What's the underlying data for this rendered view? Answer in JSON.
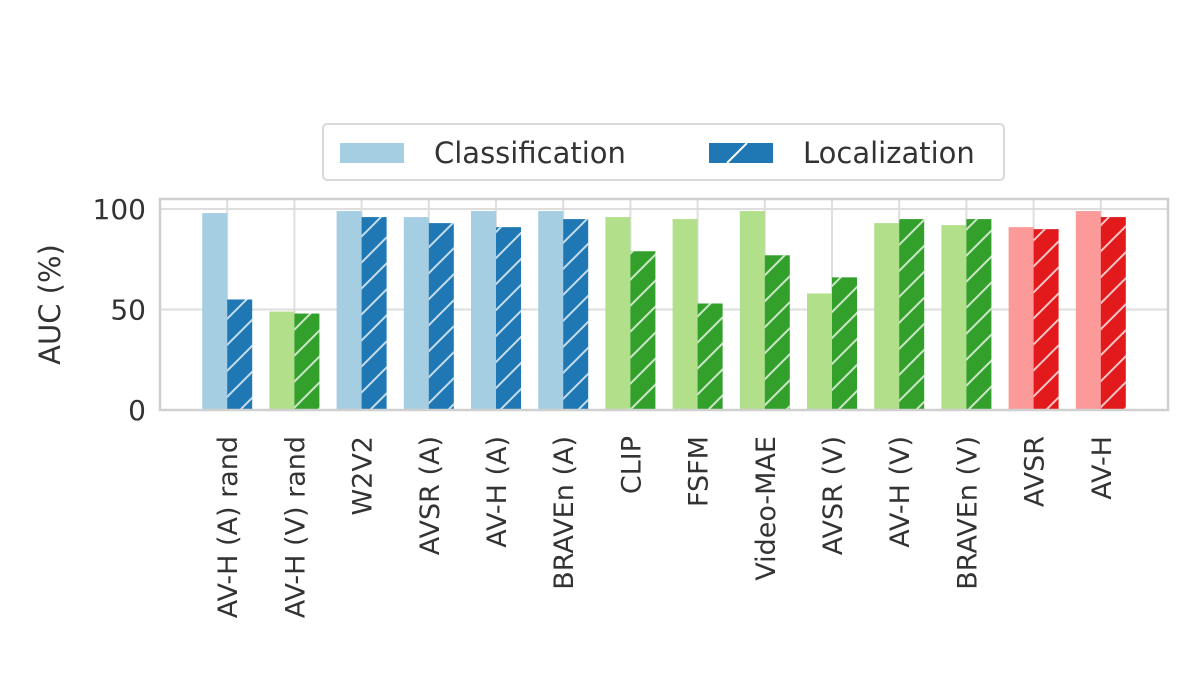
{
  "chart_data": {
    "type": "bar",
    "ylabel": "AUC (%)",
    "xlabel": "",
    "ylim": [
      0,
      105
    ],
    "yticks": [
      0,
      50,
      100
    ],
    "grid": true,
    "legend_position": "top-center, above plot",
    "categories": [
      "AV-H (A) rand",
      "AV-H (V) rand",
      "W2V2",
      "AVSR (A)",
      "AV-H (A)",
      "BRAVEn (A)",
      "CLIP",
      "FSFM",
      "Video-MAE",
      "AVSR (V)",
      "AV-H (V)",
      "BRAVEn (V)",
      "AVSR",
      "AV-H"
    ],
    "category_groups": [
      "audio",
      "video",
      "audio",
      "audio",
      "audio",
      "audio",
      "video",
      "video",
      "video",
      "video",
      "video",
      "video",
      "audio-visual",
      "audio-visual"
    ],
    "group_colors": {
      "audio": {
        "classification": "#a6cee3",
        "localization": "#1f78b4"
      },
      "video": {
        "classification": "#b2df8a",
        "localization": "#33a02c"
      },
      "audio-visual": {
        "classification": "#fb9a99",
        "localization": "#e31a1c"
      }
    },
    "series": [
      {
        "name": "Classification",
        "hatch": false,
        "values": [
          98,
          49,
          99,
          96,
          99,
          99,
          96,
          95,
          99,
          58,
          93,
          92,
          91,
          99
        ]
      },
      {
        "name": "Localization",
        "hatch": true,
        "values": [
          55,
          48,
          96,
          93,
          91,
          95,
          79,
          53,
          77,
          66,
          95,
          95,
          90,
          96
        ]
      }
    ]
  }
}
